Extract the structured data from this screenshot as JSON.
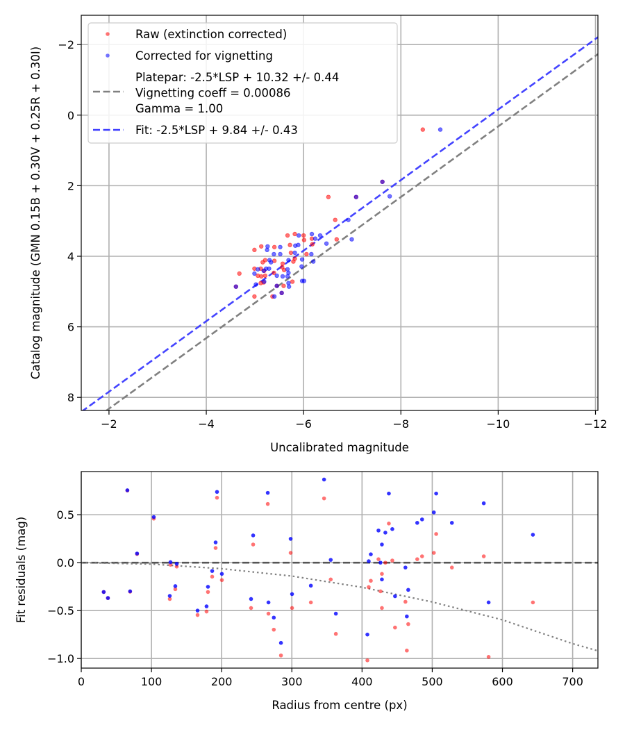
{
  "chart_data": [
    {
      "type": "scatter",
      "xlabel": "Uncalibrated magnitude",
      "ylabel": "Catalog magnitude (GMN 0.15B + 0.30V + 0.25R + 0.30I)",
      "xlim": [
        -1.43,
        -12.05
      ],
      "ylim": [
        8.37,
        -2.83
      ],
      "x_inverted": true,
      "y_inverted": true,
      "grid": true,
      "xticks": [
        -2,
        -4,
        -6,
        -8,
        -10,
        -12
      ],
      "xtick_labels": [
        "−2",
        "−4",
        "−6",
        "−8",
        "−10",
        "−12"
      ],
      "yticks": [
        -2,
        0,
        2,
        4,
        6,
        8
      ],
      "ytick_labels": [
        "−2",
        "0",
        "2",
        "4",
        "6",
        "8"
      ],
      "legend_position": "top-left",
      "legend": [
        {
          "label": "Raw (extinction corrected)",
          "kind": "marker",
          "color": "#ff0000"
        },
        {
          "label": "Corrected for vignetting",
          "kind": "marker",
          "color": "#0000ff"
        },
        {
          "label_lines": [
            "Platepar: -2.5*LSP + 10.32 +/- 0.44",
            "Vignetting coeff = 0.00086",
            "Gamma = 1.00"
          ],
          "kind": "dashed",
          "color": "#808080"
        },
        {
          "label": "Fit: -2.5*LSP + 9.84 +/- 0.43",
          "kind": "dashed",
          "color": "#3b3bff"
        }
      ],
      "lines": [
        {
          "name": "Platepar",
          "slope": 1,
          "intercept": 10.32,
          "color": "#808080"
        },
        {
          "name": "Fit",
          "slope": 1,
          "intercept": 9.84,
          "color": "#3b3bff"
        }
      ],
      "series": [
        {
          "name": "Raw (extinction corrected)",
          "color": "#ff0000",
          "x": [
            -8.45,
            -6.51,
            -7.08,
            -7.62,
            -6.65,
            -6.68,
            -5.67,
            -5.82,
            -6.0,
            -6.01,
            -6.17,
            -6.18,
            -4.99,
            -5.13,
            -5.4,
            -5.72,
            -5.74,
            -6.06,
            -5.21,
            -5.16,
            -5.4,
            -5.57,
            -5.56,
            -5.82,
            -5.79,
            -4.99,
            -5.12,
            -5.19,
            -5.6,
            -4.68,
            -5.06,
            -5.13,
            -5.21,
            -5.39,
            -5.12,
            -5.18,
            -5.59,
            -5.77,
            -4.99,
            -5.36,
            -5.55,
            -5.45,
            -4.61
          ],
          "y": [
            0.41,
            2.32,
            2.32,
            1.89,
            2.97,
            3.52,
            3.41,
            3.37,
            3.41,
            3.54,
            3.5,
            3.66,
            3.82,
            3.72,
            3.74,
            3.68,
            3.9,
            3.94,
            4.11,
            4.17,
            4.13,
            4.21,
            4.31,
            4.07,
            4.15,
            4.35,
            4.35,
            4.41,
            4.39,
            4.49,
            4.55,
            4.57,
            4.55,
            4.47,
            4.76,
            4.74,
            4.84,
            4.72,
            5.14,
            5.14,
            5.04,
            4.84,
            4.86
          ]
        },
        {
          "name": "Corrected for vignetting",
          "color": "#0000ff",
          "x": [
            -8.81,
            -7.62,
            -7.08,
            -7.77,
            -6.92,
            -6.99,
            -6.01,
            -5.9,
            -6.17,
            -6.34,
            -6.24,
            -6.47,
            -5.26,
            -5.25,
            -5.52,
            -5.83,
            -5.89,
            -5.39,
            -5.52,
            -6.16,
            -5.82,
            -5.97,
            -6.2,
            -5.3,
            -5.33,
            -5.69,
            -5.23,
            -5.29,
            -5.06,
            -5.67,
            -5.96,
            -4.99,
            -5.18,
            -5.45,
            -5.57,
            -5.69,
            -5.67,
            -5.97,
            -5.19,
            -5.02,
            -5.69,
            -5.7,
            -5.45,
            -4.61,
            -5.55,
            -5.4
          ],
          "y": [
            0.41,
            1.89,
            2.32,
            2.3,
            2.97,
            3.52,
            4.7,
            3.41,
            3.37,
            3.41,
            3.5,
            3.64,
            3.72,
            3.82,
            3.74,
            3.7,
            3.68,
            3.94,
            3.94,
            3.94,
            3.9,
            4.09,
            4.15,
            4.11,
            4.17,
            4.11,
            4.35,
            4.35,
            4.37,
            4.37,
            4.29,
            4.49,
            4.41,
            4.55,
            4.57,
            4.47,
            4.57,
            4.7,
            4.72,
            4.8,
            4.76,
            4.86,
            4.84,
            4.86,
            5.04,
            5.14
          ]
        }
      ]
    },
    {
      "type": "scatter",
      "xlabel": "Radius from centre (px)",
      "ylabel": "Fit residuals (mag)",
      "xlim": [
        0,
        736
      ],
      "ylim": [
        -1.1,
        0.95
      ],
      "grid": true,
      "xticks": [
        0,
        100,
        200,
        300,
        400,
        500,
        600,
        700
      ],
      "xtick_labels": [
        "0",
        "100",
        "200",
        "300",
        "400",
        "500",
        "600",
        "700"
      ],
      "yticks": [
        0.5,
        0.0,
        -0.5,
        -1.0
      ],
      "ytick_labels": [
        "0.5",
        "0.0",
        "−0.5",
        "−1.0"
      ],
      "zero_line": {
        "y": 0,
        "color": "#555555"
      },
      "vignetting_curve": {
        "r": [
          0,
          100,
          200,
          300,
          400,
          500,
          600,
          700,
          736
        ],
        "y": [
          0,
          -0.015,
          -0.063,
          -0.14,
          -0.257,
          -0.41,
          -0.597,
          -0.845,
          -0.92
        ],
        "color": "#808080"
      },
      "series": [
        {
          "name": "Raw (extinction corrected)",
          "color": "#ff0000",
          "x": [
            65.7,
            103.3,
            79.5,
            32.0,
            38.0,
            69.6,
            127.1,
            136.0,
            126.1,
            134.0,
            193.4,
            191.4,
            186.5,
            200.3,
            180.5,
            165.7,
            178.5,
            265.7,
            244.9,
            298.3,
            241.9,
            266.7,
            274.3,
            284.5,
            300.3,
            345.9,
            355.4,
            327.1,
            362.7,
            438.2,
            505.6,
            573.4,
            502.3,
            528.0,
            643.4,
            478.6,
            485.5,
            423.4,
            433.2,
            443.1,
            428.3,
            428.3,
            412.5,
            409.5,
            426.3,
            407.6,
            461.8,
            465.8,
            463.8,
            447.0,
            580.3
          ],
          "y": [
            0.752,
            0.459,
            0.09,
            -0.306,
            -0.369,
            -0.303,
            -0.022,
            -0.041,
            -0.379,
            -0.277,
            0.677,
            0.153,
            -0.146,
            -0.182,
            -0.306,
            -0.546,
            -0.51,
            0.612,
            0.189,
            0.102,
            -0.473,
            -0.532,
            -0.699,
            -0.968,
            -0.473,
            0.67,
            -0.175,
            -0.415,
            -0.743,
            0.408,
            0.299,
            0.066,
            0.102,
            -0.051,
            -0.415,
            0.036,
            0.066,
            0.036,
            0.0,
            0.022,
            -0.117,
            -0.473,
            -0.189,
            -0.255,
            -0.299,
            -1.019,
            -0.408,
            -0.641,
            -0.917,
            -0.677,
            -0.983
          ]
        },
        {
          "name": "Corrected for vignetting",
          "color": "#0000ff",
          "x": [
            65.7,
            103.3,
            79.5,
            32.0,
            38.0,
            69.6,
            127.1,
            136.0,
            126.1,
            134.0,
            193.4,
            191.4,
            186.5,
            200.3,
            180.5,
            165.7,
            178.5,
            265.7,
            244.9,
            298.3,
            241.9,
            266.7,
            274.3,
            284.5,
            300.3,
            345.9,
            355.4,
            327.1,
            362.7,
            438.2,
            505.6,
            573.4,
            502.3,
            528.0,
            643.4,
            478.6,
            485.5,
            423.4,
            433.2,
            443.1,
            428.3,
            428.3,
            412.5,
            409.5,
            426.3,
            407.6,
            461.8,
            465.8,
            463.8,
            447.0,
            580.3
          ],
          "y": [
            0.755,
            0.476,
            0.095,
            -0.306,
            -0.369,
            -0.299,
            0.005,
            -0.012,
            -0.347,
            -0.245,
            0.738,
            0.211,
            -0.087,
            -0.117,
            -0.252,
            -0.5,
            -0.456,
            0.728,
            0.284,
            0.248,
            -0.379,
            -0.415,
            -0.573,
            -0.837,
            -0.328,
            0.867,
            0.029,
            -0.24,
            -0.532,
            0.721,
            0.721,
            0.619,
            0.524,
            0.415,
            0.291,
            0.415,
            0.451,
            0.335,
            0.313,
            0.35,
            0.189,
            -0.175,
            0.087,
            0.015,
            0.0,
            -0.75,
            -0.051,
            -0.284,
            -0.561,
            -0.35,
            -0.415
          ]
        }
      ]
    }
  ]
}
